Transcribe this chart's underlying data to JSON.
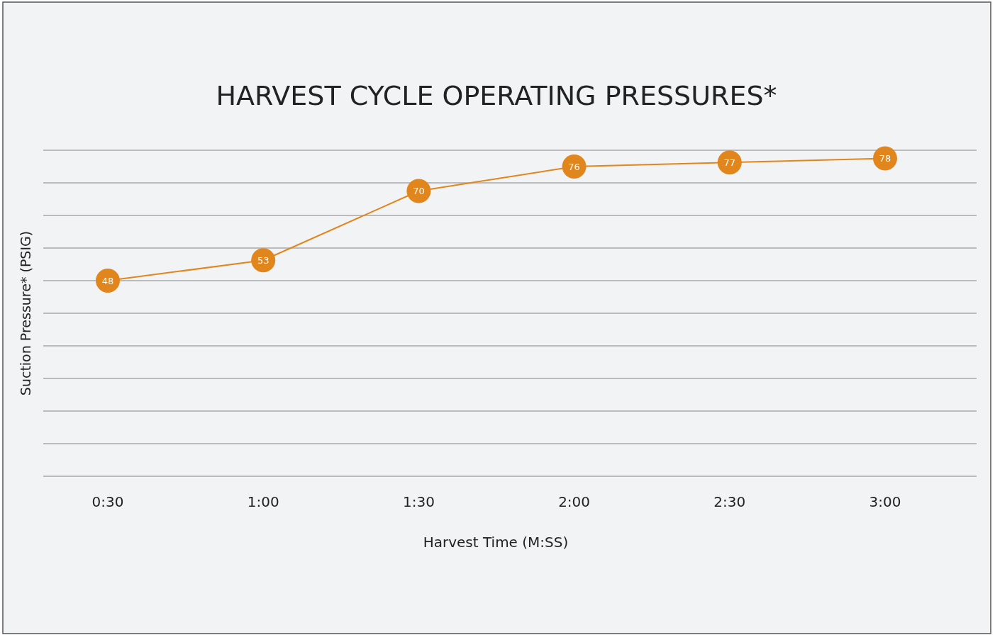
{
  "chart_data": {
    "type": "line",
    "title": "HARVEST CYCLE OPERATING PRESSURES*",
    "xlabel": "Harvest Time (M:SS)",
    "ylabel": "Suction Pressure* (PSIG)",
    "categories": [
      "0:30",
      "1:00",
      "1:30",
      "2:00",
      "2:30",
      "3:00"
    ],
    "series": [
      {
        "color": "#e0861c",
        "values": [
          48,
          53,
          70,
          76,
          77,
          78
        ]
      }
    ],
    "ylim": [
      0,
      80
    ],
    "yticks": [
      {
        "value": 0,
        "label": null
      },
      {
        "value": 8,
        "label": null
      },
      {
        "value": 16,
        "label": null
      },
      {
        "value": 24,
        "label": null
      },
      {
        "value": 32,
        "label": null
      },
      {
        "value": 40,
        "label": null
      },
      {
        "value": 48,
        "label": null
      },
      {
        "value": 56,
        "label": null
      },
      {
        "value": 64,
        "label": null
      },
      {
        "value": 72,
        "label": null
      },
      {
        "value": 80,
        "label": null
      }
    ],
    "tick_labels": "x",
    "grid": "y",
    "marker": "circle",
    "line_style": "solid",
    "data_labels": true
  }
}
